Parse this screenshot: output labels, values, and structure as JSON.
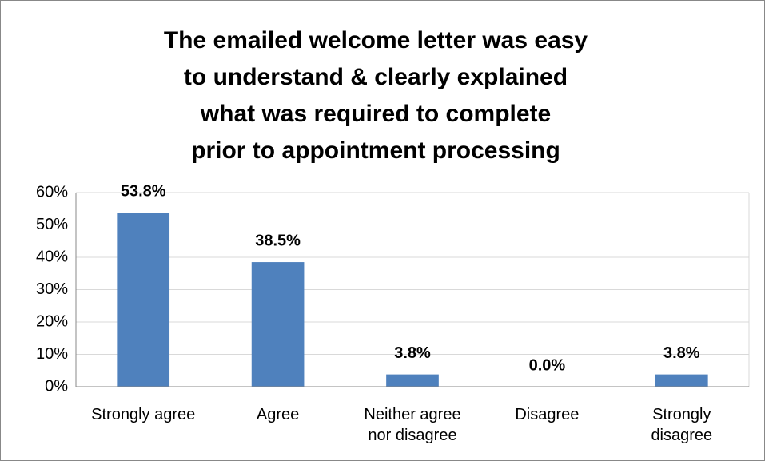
{
  "chart_data": {
    "type": "bar",
    "title": "The emailed welcome letter was easy\nto understand & clearly explained\nwhat was required to complete\nprior to appointment processing",
    "categories": [
      "Strongly agree",
      "Agree",
      "Neither agree\nnor disagree",
      "Disagree",
      "Strongly\ndisagree"
    ],
    "values": [
      53.8,
      38.5,
      3.8,
      0.0,
      3.8
    ],
    "value_labels": [
      "53.8%",
      "38.5%",
      "3.8%",
      "0.0%",
      "3.8%"
    ],
    "color": "#4f81bd",
    "ylim": [
      0,
      60
    ],
    "yticks": [
      {
        "value": 0,
        "label": "0%"
      },
      {
        "value": 10,
        "label": "10%"
      },
      {
        "value": 20,
        "label": "20%"
      },
      {
        "value": 30,
        "label": "30%"
      },
      {
        "value": 40,
        "label": "40%"
      },
      {
        "value": 50,
        "label": "50%"
      },
      {
        "value": 60,
        "label": "60%"
      }
    ],
    "grid": true
  }
}
